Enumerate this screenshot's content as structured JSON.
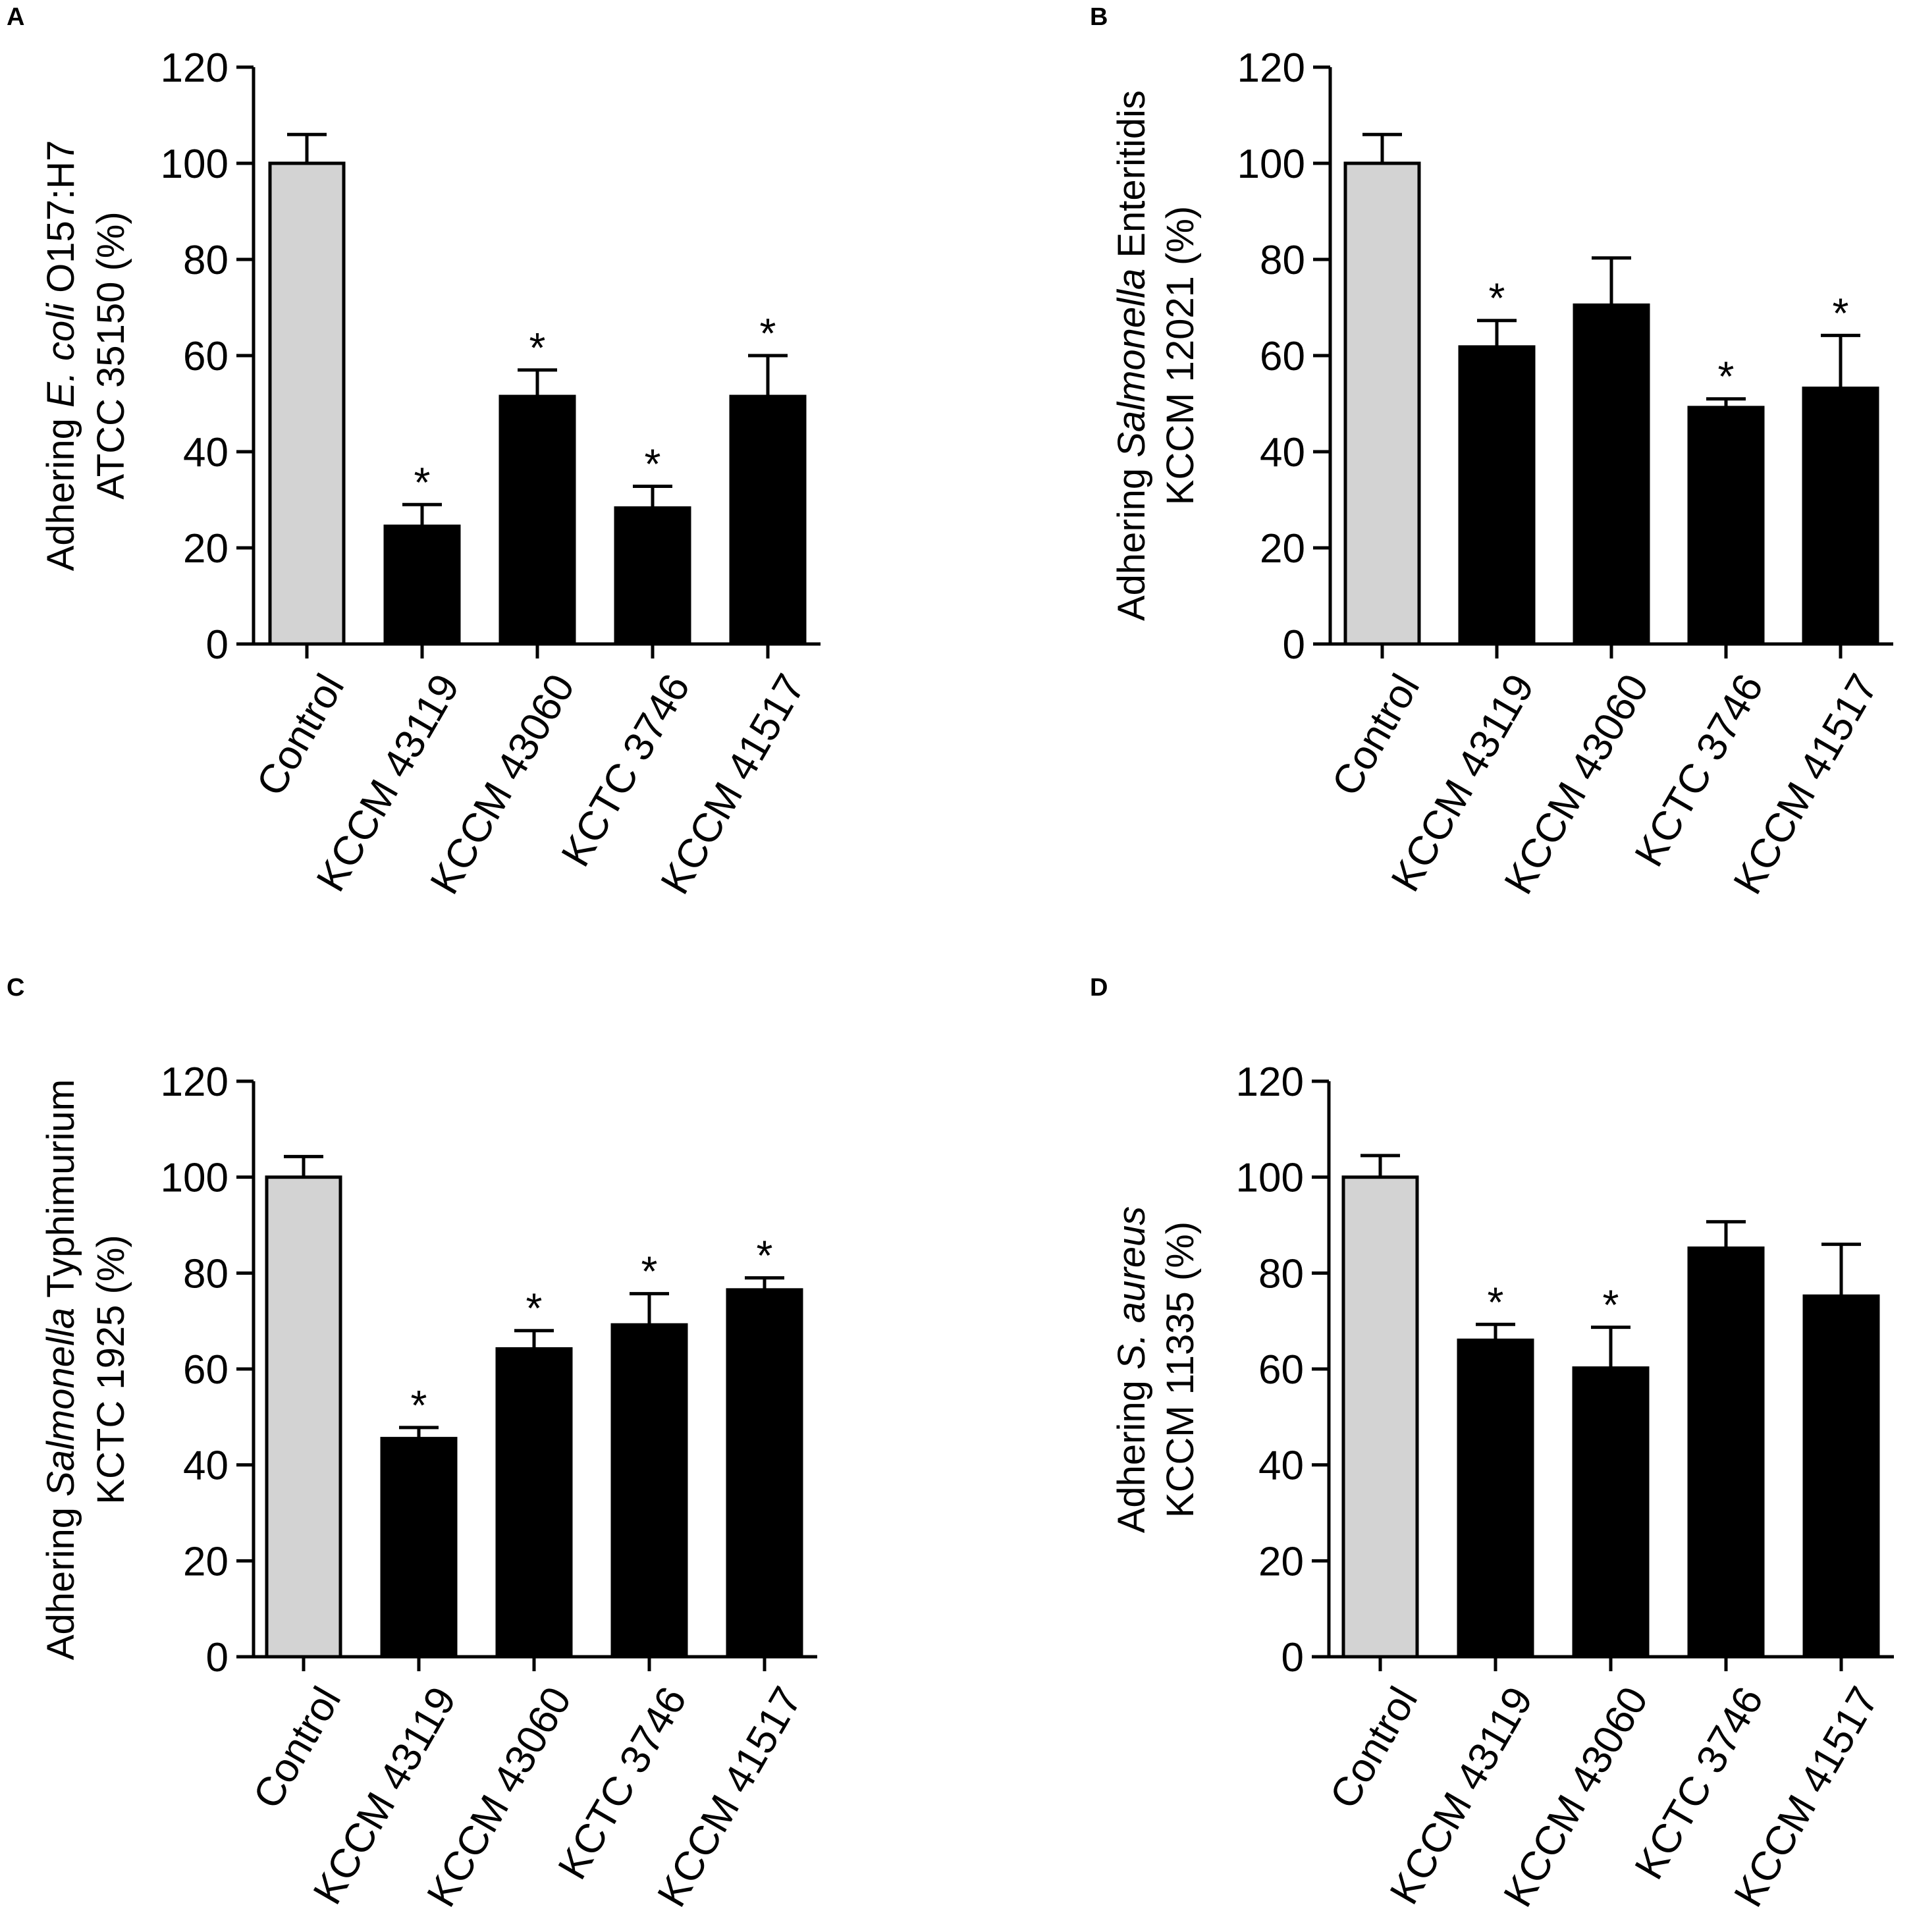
{
  "colors": {
    "control": "#d3d3d3",
    "treatment": "#000000",
    "axis": "#000000"
  },
  "chart_data": [
    {
      "panel": "A",
      "type": "bar",
      "categories": [
        "Control",
        "KCCM 43119",
        "KCCM 43060",
        "KCTC 3746",
        "KCCM 41517"
      ],
      "values": [
        100,
        24.5,
        51.5,
        28.3,
        51.5
      ],
      "errors": [
        6,
        4.5,
        5.5,
        4.5,
        8.5
      ],
      "significant": [
        false,
        true,
        true,
        true,
        true
      ],
      "ylabel_line1": [
        "Adhering ",
        "E. coli",
        " O157:H7"
      ],
      "ylabel_line2": "ATCC 35150 (%)",
      "ylim": [
        0,
        120
      ],
      "yticks": [
        "0",
        "20",
        "40",
        "60",
        "80",
        "100",
        "120"
      ]
    },
    {
      "panel": "B",
      "type": "bar",
      "categories": [
        "Control",
        "KCCM 43119",
        "KCCM 43060",
        "KCTC 3746",
        "KCCM 41517"
      ],
      "values": [
        100,
        61.8,
        70.5,
        49.2,
        53.2
      ],
      "errors": [
        6,
        5.5,
        9.8,
        1.8,
        11
      ],
      "significant": [
        false,
        true,
        false,
        true,
        true
      ],
      "ylabel_line1": [
        "Adhering ",
        "Salmonella",
        " Enteritidis"
      ],
      "ylabel_line2": "KCCM 12021 (%)",
      "ylim": [
        0,
        120
      ],
      "yticks": [
        "0",
        "20",
        "40",
        "60",
        "80",
        "100",
        "120"
      ]
    },
    {
      "panel": "C",
      "type": "bar",
      "categories": [
        "Control",
        "KCCM 43119",
        "KCCM 43060",
        "KCTC 3746",
        "KCCM 41517"
      ],
      "values": [
        100,
        45.5,
        64.2,
        69.2,
        76.5
      ],
      "errors": [
        4.3,
        2.3,
        3.8,
        6.5,
        2.5
      ],
      "significant": [
        false,
        true,
        true,
        true,
        true
      ],
      "ylabel_line1": [
        "Adhering ",
        "Salmonella",
        " Typhimurium"
      ],
      "ylabel_line2": "KCTC 1925 (%)",
      "ylim": [
        0,
        120
      ],
      "yticks": [
        "0",
        "20",
        "40",
        "60",
        "80",
        "100",
        "120"
      ]
    },
    {
      "panel": "D",
      "type": "bar",
      "categories": [
        "Control",
        "KCCM 43119",
        "KCCM 43060",
        "KCTC 3746",
        "KCCM 41517"
      ],
      "values": [
        100,
        66,
        60.2,
        85.2,
        75.2
      ],
      "errors": [
        4.5,
        3.3,
        8.5,
        5.5,
        10.8
      ],
      "significant": [
        false,
        true,
        true,
        false,
        false
      ],
      "ylabel_line1": [
        "Adhering ",
        "S. aureus",
        ""
      ],
      "ylabel_line2": "KCCM 11335 (%)",
      "ylim": [
        0,
        120
      ],
      "yticks": [
        "0",
        "20",
        "40",
        "60",
        "80",
        "100",
        "120"
      ]
    }
  ]
}
